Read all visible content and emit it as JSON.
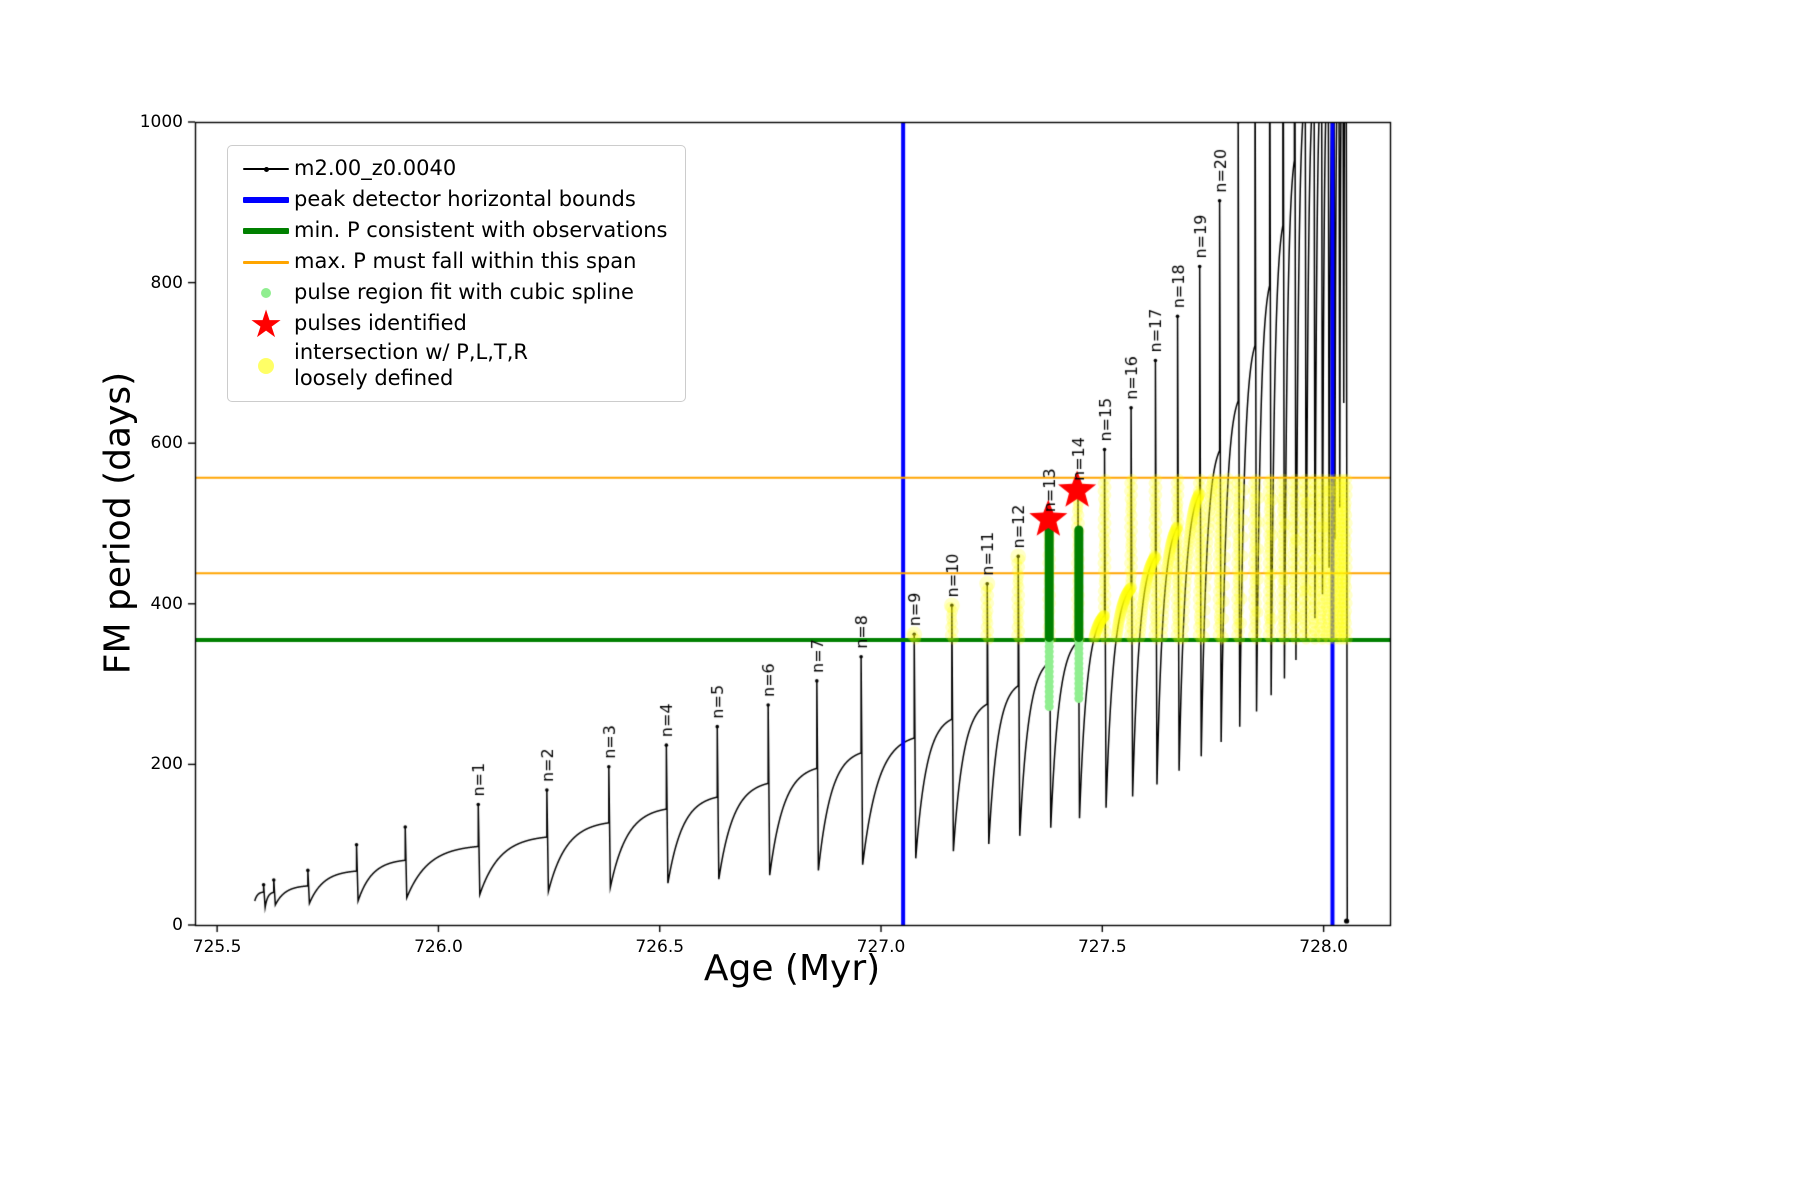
{
  "figure": {
    "background": "#ffffff"
  },
  "chart_data": {
    "type": "line",
    "title": "",
    "xlabel": "Age (Myr)",
    "ylabel": "FM period (days)",
    "xlim": [
      725.45,
      728.15
    ],
    "ylim": [
      0,
      1000
    ],
    "xticks": [
      "725.5",
      "726.0",
      "726.5",
      "727.0",
      "727.5",
      "728.0"
    ],
    "xtick_values": [
      725.5,
      726.0,
      726.5,
      727.0,
      727.5,
      728.0
    ],
    "yticks": [
      "0",
      "200",
      "400",
      "600",
      "800",
      "1000"
    ],
    "ytick_values": [
      0,
      200,
      400,
      600,
      800,
      1000
    ],
    "grid": false,
    "legend_position": "upper-left",
    "series_name": "m2.00_z0.0040",
    "colors": {
      "curve": "#000000",
      "peak_detector_bounds": "#0000ff",
      "min_P_line": "#008000",
      "max_P_span": "#ffa500",
      "pulse_region_spline": "#90ee90",
      "pulse_region_core": "#008000",
      "pulses_identified": "#ff0000",
      "intersection_points": "#ffff00"
    },
    "peak_detector_bounds_x": [
      727.05,
      728.02
    ],
    "min_P_line_y": 355,
    "max_P_span_y": [
      438,
      557
    ],
    "curve_start": [
      725.585,
      30
    ],
    "shape": {
      "shoulder_frac": 0.55,
      "rise_tau": 3.3,
      "drop_dx": 0.0035
    },
    "pulses": [
      [
        725.605,
        50,
        22,
        null
      ],
      [
        725.628,
        56,
        25,
        null
      ],
      [
        725.705,
        68,
        27,
        null
      ],
      [
        725.815,
        100,
        30,
        null
      ],
      [
        725.925,
        122,
        34,
        null
      ],
      [
        726.09,
        150,
        38,
        "n=1"
      ],
      [
        726.245,
        168,
        42,
        "n=2"
      ],
      [
        726.385,
        197,
        47,
        "n=3"
      ],
      [
        726.515,
        224,
        52,
        "n=4"
      ],
      [
        726.63,
        247,
        57,
        "n=5"
      ],
      [
        726.745,
        274,
        62,
        "n=6"
      ],
      [
        726.855,
        304,
        68,
        "n=7"
      ],
      [
        726.955,
        334,
        75,
        "n=8"
      ],
      [
        727.075,
        362,
        83,
        "n=9"
      ],
      [
        727.16,
        398,
        92,
        "n=10"
      ],
      [
        727.24,
        425,
        101,
        "n=11"
      ],
      [
        727.31,
        459,
        111,
        "n=12"
      ],
      [
        727.38,
        504,
        121,
        "n=13"
      ],
      [
        727.445,
        543,
        133,
        "n=14"
      ],
      [
        727.505,
        592,
        146,
        "n=15"
      ],
      [
        727.565,
        644,
        160,
        "n=16"
      ],
      [
        727.62,
        703,
        175,
        "n=17"
      ],
      [
        727.67,
        758,
        192,
        "n=18"
      ],
      [
        727.72,
        820,
        210,
        "n=19"
      ],
      [
        727.765,
        902,
        228,
        "n=20"
      ],
      [
        727.807,
        1000,
        247,
        null
      ],
      [
        727.845,
        1110,
        266,
        null
      ],
      [
        727.878,
        1230,
        286,
        null
      ],
      [
        727.908,
        1350,
        307,
        null
      ],
      [
        727.934,
        1480,
        330,
        null
      ],
      [
        727.957,
        1600,
        355,
        null
      ],
      [
        727.977,
        1600,
        382,
        null
      ],
      [
        727.994,
        1600,
        412,
        null
      ],
      [
        728.009,
        1600,
        445,
        null
      ],
      [
        728.022,
        1600,
        480,
        null
      ],
      [
        728.033,
        1600,
        520,
        null
      ],
      [
        728.042,
        1600,
        650,
        null
      ],
      [
        728.05,
        1600,
        5,
        null
      ]
    ],
    "identified_pulses": [
      {
        "label": "n=13",
        "x": 727.378,
        "y": 505
      },
      {
        "label": "n=14",
        "x": 727.443,
        "y": 541
      }
    ],
    "spline_core_segments": [
      {
        "x": 727.38,
        "y_from": 358,
        "y_to": 505
      },
      {
        "x": 727.447,
        "y_from": 358,
        "y_to": 492
      }
    ],
    "spline_light_segments": [
      {
        "x": 727.38,
        "y_from": 272,
        "y_to": 358
      },
      {
        "x": 727.447,
        "y_from": 282,
        "y_to": 358
      }
    ],
    "yellow_band": {
      "y_min": 356,
      "y_max": 556,
      "spike_x_min": 727.06,
      "rise_x_min": 727.3
    },
    "legend": [
      {
        "label": "m2.00_z0.0040",
        "symbol": "black-line-dot",
        "color": "#000000"
      },
      {
        "label": "peak detector horizontal bounds",
        "symbol": "blue-thick-line",
        "color": "#0000ff"
      },
      {
        "label": "min. P consistent with observations",
        "symbol": "green-thick-line",
        "color": "#008000"
      },
      {
        "label": "max. P must fall within this span",
        "symbol": "orange-line",
        "color": "#ffa500"
      },
      {
        "label": "pulse region fit with cubic spline",
        "symbol": "lightgreen-dot",
        "color": "#90ee90"
      },
      {
        "label": "pulses identified",
        "symbol": "red-star",
        "color": "#ff0000"
      },
      {
        "label": "intersection w/ P,L,T,R",
        "label2": "loosely defined",
        "symbol": "yellow-dot",
        "color": "#ffff66"
      }
    ]
  }
}
